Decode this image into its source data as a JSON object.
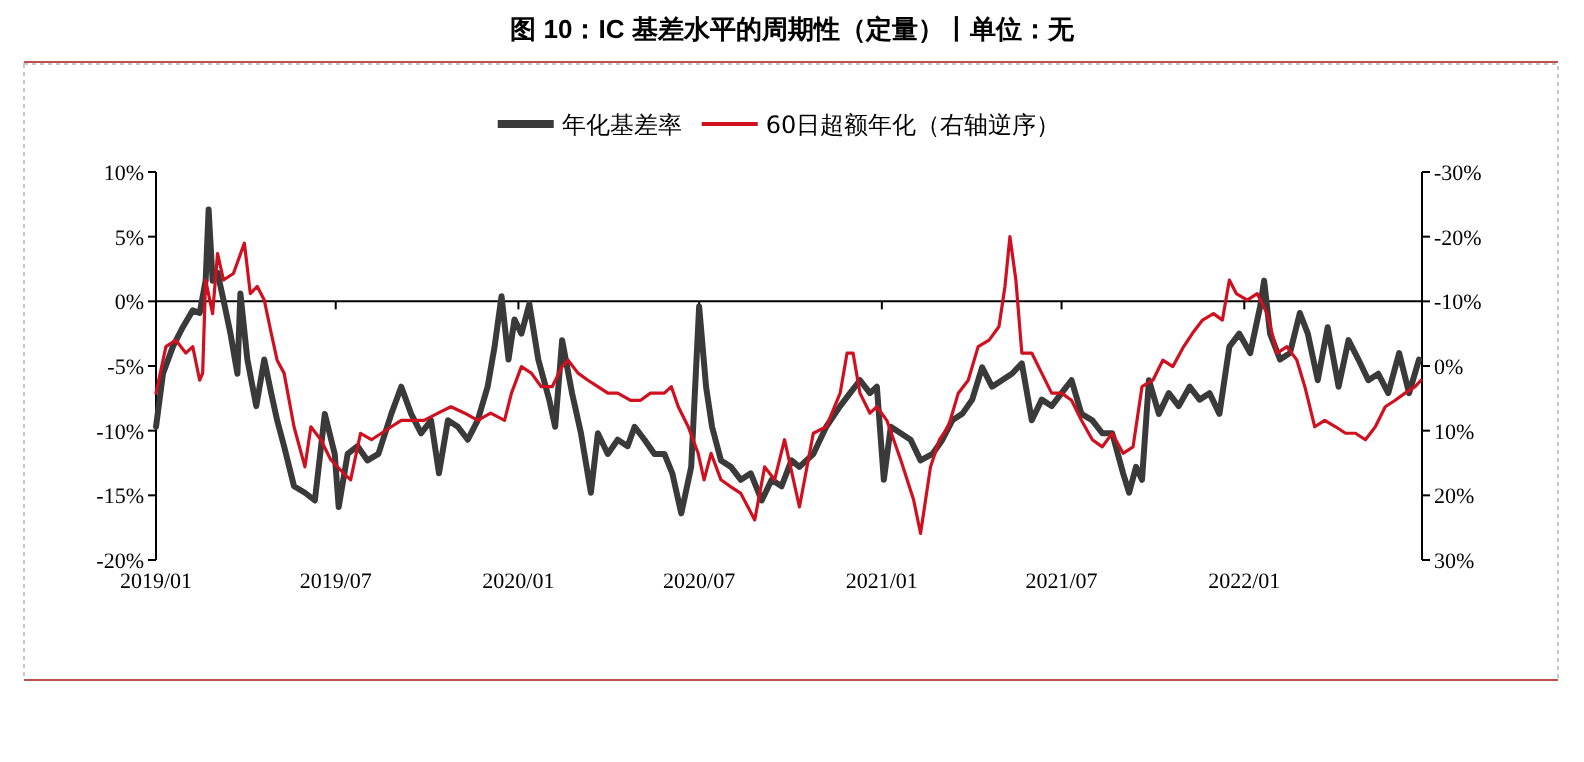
{
  "chart_data": {
    "type": "line",
    "title": "图 10：IC 基差水平的周期性（定量）丨单位：无",
    "xlim": [
      "2019-01-01",
      "2022-06-29"
    ],
    "xticks": [
      {
        "value": "2019-01-01",
        "label": "2019/01"
      },
      {
        "value": "2019-07-01",
        "label": "2019/07"
      },
      {
        "value": "2020-01-01",
        "label": "2020/01"
      },
      {
        "value": "2020-07-01",
        "label": "2020/07"
      },
      {
        "value": "2021-01-01",
        "label": "2021/01"
      },
      {
        "value": "2021-07-01",
        "label": "2021/07"
      },
      {
        "value": "2022-01-01",
        "label": "2022/01"
      }
    ],
    "ylim": [
      -20,
      10
    ],
    "yticks": [
      {
        "value": -20,
        "label": "-20%"
      },
      {
        "value": -15,
        "label": "-15%"
      },
      {
        "value": -10,
        "label": "-10%"
      },
      {
        "value": -5,
        "label": "-5%"
      },
      {
        "value": 0,
        "label": "0%"
      },
      {
        "value": 5,
        "label": "5%"
      },
      {
        "value": 10,
        "label": "10%"
      }
    ],
    "y2lim": [
      30,
      -30
    ],
    "y2ticks": [
      {
        "value": 30,
        "label": "30%"
      },
      {
        "value": 20,
        "label": "20%"
      },
      {
        "value": 10,
        "label": "10%"
      },
      {
        "value": 0,
        "label": "0%"
      },
      {
        "value": -10,
        "label": "-10%"
      },
      {
        "value": -20,
        "label": "-20%"
      },
      {
        "value": -30,
        "label": "-30%"
      }
    ],
    "legend": "top",
    "grid": false,
    "ref_lines": [
      {
        "axis": "y",
        "value": 0,
        "color": "#000000"
      }
    ],
    "series": [
      {
        "name": "年化基差率",
        "color": "#3a3a3a",
        "x": [
          "2019-01-01",
          "2019-01-08",
          "2019-01-18",
          "2019-01-28",
          "2019-02-07",
          "2019-02-14",
          "2019-02-20",
          "2019-02-23",
          "2019-02-27",
          "2019-03-04",
          "2019-03-10",
          "2019-03-17",
          "2019-03-24",
          "2019-03-27",
          "2019-04-03",
          "2019-04-12",
          "2019-04-20",
          "2019-04-27",
          "2019-05-03",
          "2019-05-10",
          "2019-05-20",
          "2019-05-31",
          "2019-06-10",
          "2019-06-20",
          "2019-06-30",
          "2019-07-04",
          "2019-07-13",
          "2019-07-23",
          "2019-08-02",
          "2019-08-13",
          "2019-08-26",
          "2019-09-05",
          "2019-09-15",
          "2019-09-25",
          "2019-10-05",
          "2019-10-13",
          "2019-10-22",
          "2019-11-01",
          "2019-11-11",
          "2019-11-21",
          "2019-12-01",
          "2019-12-08",
          "2019-12-15",
          "2019-12-22",
          "2019-12-28",
          "2020-01-04",
          "2020-01-12",
          "2020-01-21",
          "2020-02-01",
          "2020-02-07",
          "2020-02-14",
          "2020-02-24",
          "2020-03-04",
          "2020-03-14",
          "2020-03-21",
          "2020-03-31",
          "2020-04-10",
          "2020-04-20",
          "2020-04-27",
          "2020-05-07",
          "2020-05-17",
          "2020-05-27",
          "2020-06-04",
          "2020-06-13",
          "2020-06-23",
          "2020-07-01",
          "2020-07-08",
          "2020-07-14",
          "2020-07-23",
          "2020-08-02",
          "2020-08-12",
          "2020-08-22",
          "2020-09-02",
          "2020-09-12",
          "2020-09-22",
          "2020-10-02",
          "2020-10-10",
          "2020-10-24",
          "2020-11-06",
          "2020-11-20",
          "2020-11-30",
          "2020-12-10",
          "2020-12-20",
          "2020-12-27",
          "2021-01-03",
          "2021-01-10",
          "2021-01-20",
          "2021-01-30",
          "2021-02-09",
          "2021-02-21",
          "2021-03-03",
          "2021-03-13",
          "2021-03-23",
          "2021-04-02",
          "2021-04-12",
          "2021-04-22",
          "2021-05-02",
          "2021-05-12",
          "2021-05-22",
          "2021-06-01",
          "2021-06-11",
          "2021-06-21",
          "2021-07-01",
          "2021-07-11",
          "2021-07-21",
          "2021-08-01",
          "2021-08-11",
          "2021-08-21",
          "2021-09-01",
          "2021-09-07",
          "2021-09-14",
          "2021-09-20",
          "2021-09-27",
          "2021-10-07",
          "2021-10-17",
          "2021-10-27",
          "2021-11-07",
          "2021-11-17",
          "2021-11-27",
          "2021-12-07",
          "2021-12-17",
          "2021-12-27",
          "2022-01-07",
          "2022-01-17",
          "2022-01-21",
          "2022-01-27",
          "2022-02-06",
          "2022-02-16",
          "2022-02-26",
          "2022-03-06",
          "2022-03-16",
          "2022-03-26",
          "2022-04-06",
          "2022-04-16",
          "2022-04-26",
          "2022-05-06",
          "2022-05-16",
          "2022-05-26",
          "2022-06-06",
          "2022-06-16",
          "2022-06-26"
        ],
        "values": [
          -9.7,
          -5.6,
          -3.5,
          -2.0,
          -0.7,
          -0.9,
          1.6,
          7.1,
          1.6,
          2.2,
          0.1,
          -2.5,
          -5.6,
          0.6,
          -4.5,
          -8.1,
          -4.5,
          -7.1,
          -9.2,
          -11.2,
          -14.3,
          -14.8,
          -15.4,
          -8.7,
          -11.8,
          -15.9,
          -11.8,
          -11.2,
          -12.3,
          -11.8,
          -8.7,
          -6.6,
          -8.7,
          -10.2,
          -9.2,
          -13.3,
          -9.2,
          -9.7,
          -10.7,
          -9.2,
          -6.6,
          -3.5,
          0.4,
          -4.5,
          -1.4,
          -2.5,
          -0.2,
          -4.5,
          -7.6,
          -9.7,
          -3.0,
          -7.1,
          -10.2,
          -14.8,
          -10.2,
          -11.8,
          -10.7,
          -11.2,
          -9.7,
          -10.7,
          -11.8,
          -11.8,
          -13.3,
          -16.4,
          -12.8,
          -0.4,
          -6.6,
          -9.7,
          -12.3,
          -12.8,
          -13.8,
          -13.3,
          -15.4,
          -13.8,
          -14.3,
          -12.3,
          -12.8,
          -11.8,
          -9.7,
          -8.1,
          -7.1,
          -6.1,
          -7.1,
          -6.6,
          -13.8,
          -9.7,
          -10.2,
          -10.7,
          -12.3,
          -11.8,
          -10.7,
          -9.2,
          -8.7,
          -7.6,
          -5.1,
          -6.6,
          -6.1,
          -5.6,
          -4.8,
          -9.2,
          -7.6,
          -8.1,
          -7.1,
          -6.1,
          -8.7,
          -9.2,
          -10.2,
          -10.2,
          -13.3,
          -14.8,
          -12.8,
          -13.8,
          -6.1,
          -8.7,
          -7.1,
          -8.1,
          -6.6,
          -7.6,
          -7.1,
          -8.7,
          -3.5,
          -2.5,
          -4.0,
          -0.4,
          1.6,
          -2.5,
          -4.5,
          -4.0,
          -0.9,
          -2.5,
          -6.1,
          -2.0,
          -6.6,
          -3.0,
          -4.5,
          -6.1,
          -5.6,
          -7.1,
          -4.0,
          -7.1,
          -4.5
        ]
      },
      {
        "name": "60日超额年化（右轴逆序）",
        "color": "#d0101e",
        "axis": "y2",
        "x": [
          "2019-01-01",
          "2019-01-11",
          "2019-01-21",
          "2019-01-31",
          "2019-02-07",
          "2019-02-14",
          "2019-02-17",
          "2019-02-20",
          "2019-02-27",
          "2019-03-04",
          "2019-03-10",
          "2019-03-20",
          "2019-03-31",
          "2019-04-06",
          "2019-04-13",
          "2019-04-20",
          "2019-04-27",
          "2019-05-03",
          "2019-05-10",
          "2019-05-20",
          "2019-05-31",
          "2019-06-06",
          "2019-06-16",
          "2019-06-26",
          "2019-07-09",
          "2019-07-16",
          "2019-07-26",
          "2019-08-06",
          "2019-08-16",
          "2019-08-26",
          "2019-09-05",
          "2019-09-15",
          "2019-09-28",
          "2019-10-12",
          "2019-10-25",
          "2019-11-08",
          "2019-11-21",
          "2019-12-04",
          "2019-12-18",
          "2019-12-25",
          "2020-01-04",
          "2020-01-14",
          "2020-01-24",
          "2020-02-04",
          "2020-02-14",
          "2020-02-20",
          "2020-03-01",
          "2020-03-11",
          "2020-03-21",
          "2020-03-31",
          "2020-04-10",
          "2020-04-23",
          "2020-05-03",
          "2020-05-13",
          "2020-05-27",
          "2020-06-03",
          "2020-06-10",
          "2020-06-20",
          "2020-06-30",
          "2020-07-06",
          "2020-07-13",
          "2020-07-23",
          "2020-08-02",
          "2020-08-12",
          "2020-08-26",
          "2020-09-05",
          "2020-09-15",
          "2020-09-25",
          "2020-10-10",
          "2020-10-24",
          "2020-11-06",
          "2020-11-20",
          "2020-11-27",
          "2020-12-03",
          "2020-12-10",
          "2020-12-20",
          "2020-12-27",
          "2021-01-06",
          "2021-01-20",
          "2021-02-02",
          "2021-02-09",
          "2021-02-19",
          "2021-02-28",
          "2021-03-09",
          "2021-03-19",
          "2021-03-29",
          "2021-04-08",
          "2021-04-19",
          "2021-04-29",
          "2021-05-05",
          "2021-05-10",
          "2021-05-16",
          "2021-05-22",
          "2021-06-01",
          "2021-06-11",
          "2021-06-21",
          "2021-07-01",
          "2021-07-11",
          "2021-07-21",
          "2021-08-01",
          "2021-08-11",
          "2021-08-21",
          "2021-09-01",
          "2021-09-11",
          "2021-09-20",
          "2021-10-01",
          "2021-10-11",
          "2021-10-21",
          "2021-11-01",
          "2021-11-10",
          "2021-11-20",
          "2021-12-01",
          "2021-12-10",
          "2021-12-17",
          "2021-12-24",
          "2022-01-04",
          "2022-01-14",
          "2022-01-24",
          "2022-02-03",
          "2022-02-13",
          "2022-02-23",
          "2022-03-03",
          "2022-03-13",
          "2022-03-23",
          "2022-04-03",
          "2022-04-13",
          "2022-04-23",
          "2022-05-03",
          "2022-05-13",
          "2022-05-23",
          "2022-06-02",
          "2022-06-12",
          "2022-06-22",
          "2022-06-28"
        ],
        "values": [
          4.2,
          -3.0,
          -4.0,
          -2.0,
          -3.0,
          2.2,
          1.1,
          -13.3,
          -8.1,
          -17.4,
          -13.3,
          -14.3,
          -19.0,
          -11.2,
          -12.3,
          -10.2,
          -5.1,
          -0.9,
          1.1,
          9.4,
          15.6,
          9.4,
          11.4,
          14.5,
          16.6,
          17.6,
          10.4,
          11.4,
          10.4,
          9.4,
          8.4,
          8.4,
          8.4,
          7.3,
          6.3,
          7.3,
          8.4,
          7.3,
          8.4,
          4.2,
          0.1,
          1.1,
          3.2,
          3.2,
          0.1,
          -0.9,
          1.1,
          2.2,
          3.2,
          4.2,
          4.2,
          5.3,
          5.3,
          4.2,
          4.2,
          3.2,
          6.3,
          9.4,
          13.5,
          17.6,
          13.5,
          17.6,
          18.7,
          19.7,
          23.8,
          15.6,
          17.6,
          11.4,
          21.8,
          10.4,
          9.4,
          4.2,
          -2.0,
          -2.0,
          4.2,
          7.3,
          6.3,
          8.4,
          14.5,
          20.7,
          25.9,
          15.6,
          11.4,
          9.4,
          4.2,
          2.2,
          -3.0,
          -4.0,
          -6.1,
          -12.3,
          -20.0,
          -13.3,
          -2.0,
          -2.0,
          1.1,
          4.2,
          4.2,
          5.3,
          8.4,
          11.4,
          12.5,
          10.4,
          13.5,
          12.5,
          3.2,
          2.2,
          -0.9,
          0.1,
          -3.0,
          -5.1,
          -7.1,
          -8.1,
          -7.1,
          -13.3,
          -11.2,
          -10.2,
          -11.2,
          -8.1,
          -2.0,
          -3.0,
          -0.9,
          3.2,
          9.4,
          8.4,
          9.4,
          10.4,
          10.4,
          11.4,
          9.4,
          6.3,
          5.3,
          4.2,
          3.2,
          2.2
        ]
      }
    ]
  }
}
